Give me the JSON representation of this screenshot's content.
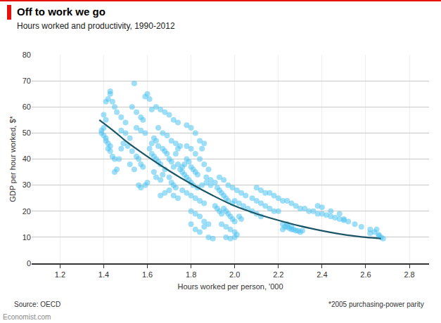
{
  "chart_data": {
    "type": "scatter",
    "title": "Off to work we go",
    "subtitle": "Hours worked and productivity, 1990-2012",
    "x_label": "Hours worked per person, '000",
    "y_label": "GDP per hour worked, $*",
    "annotations": [
      "Source: OECD",
      "*2005 purchasing-power parity",
      "Economist.com"
    ],
    "xlim": [
      1.07,
      2.89
    ],
    "xticks": [
      1.2,
      1.4,
      1.6,
      1.8,
      {
        "value": 2,
        "label": "2.0"
      },
      2.2,
      2.4,
      2.6,
      2.8
    ],
    "ylim": [
      0,
      80
    ],
    "yticks": [
      0,
      10,
      20,
      30,
      40,
      50,
      60,
      70,
      80
    ],
    "grid": true,
    "series": [
      {
        "type": "scatter",
        "color": "#4fc3f0",
        "marker": "circle",
        "x": [
          1.39,
          1.39,
          1.4,
          1.4,
          1.41,
          1.41,
          1.42,
          1.42,
          1.43,
          1.43,
          1.44,
          1.45,
          1.41,
          1.42,
          1.43,
          1.43,
          1.44,
          1.45,
          1.46,
          1.45,
          1.46,
          1.47,
          1.48,
          1.4,
          1.41,
          1.48,
          1.5,
          1.52,
          1.49,
          1.51,
          1.53,
          1.55,
          1.56,
          1.57,
          1.58,
          1.53,
          1.54,
          1.55,
          1.57,
          1.58,
          1.59,
          1.6,
          1.61,
          1.55,
          1.57,
          1.59,
          1.52,
          1.54,
          1.56,
          1.57,
          1.59,
          1.6,
          1.5,
          1.48,
          1.61,
          1.62,
          1.63,
          1.64,
          1.65,
          1.66,
          1.62,
          1.63,
          1.64,
          1.65,
          1.67,
          1.68,
          1.69,
          1.7,
          1.71,
          1.72,
          1.63,
          1.64,
          1.66,
          1.67,
          1.68,
          1.7,
          1.71,
          1.72,
          1.73,
          1.62,
          1.64,
          1.66,
          1.68,
          1.7,
          1.72,
          1.74,
          1.65,
          1.67,
          1.69,
          1.71,
          1.73,
          1.75,
          1.74,
          1.73,
          1.66,
          1.68,
          1.7,
          1.72,
          1.74,
          1.75,
          1.76,
          1.74,
          1.76,
          1.77,
          1.78,
          1.79,
          1.8,
          1.81,
          1.77,
          1.78,
          1.79,
          1.8,
          1.81,
          1.82,
          1.83,
          1.78,
          1.8,
          1.82,
          1.84,
          1.86,
          1.85,
          1.78,
          1.8,
          1.82,
          1.84,
          1.86,
          1.88,
          1.76,
          1.78,
          1.8,
          1.82,
          1.84,
          1.86,
          1.83,
          1.85,
          1.87,
          1.89,
          1.8,
          1.82,
          1.84,
          1.86,
          1.88,
          1.8,
          1.82,
          1.84,
          1.86,
          1.88,
          1.9,
          1.87,
          1.89,
          1.91,
          1.92,
          1.93,
          1.94,
          1.95,
          1.96,
          1.91,
          1.92,
          1.93,
          1.94,
          1.95,
          1.96,
          1.97,
          1.98,
          1.99,
          2.0,
          1.94,
          1.96,
          1.98,
          2.0,
          2.01,
          1.96,
          1.98,
          2.0,
          1.93,
          1.95,
          1.97,
          1.99,
          2.01,
          2.03,
          2.05,
          2.0,
          2.02,
          2.04,
          2.06,
          2.02,
          2.03,
          1.97,
          1.99,
          2.08,
          2.1,
          2.12,
          2.14,
          2.16,
          2.18,
          2.2,
          2.1,
          2.12,
          2.14,
          2.16,
          2.18,
          2.2,
          2.22,
          2.24,
          2.26,
          2.28,
          2.08,
          2.1,
          2.12,
          2.22,
          2.23,
          2.24,
          2.25,
          2.26,
          2.27,
          2.28,
          2.29,
          2.3,
          2.31,
          2.22,
          2.24,
          2.26,
          2.3,
          2.32,
          2.34,
          2.36,
          2.38,
          2.4,
          2.42,
          2.44,
          2.46,
          2.48,
          2.5,
          2.52,
          2.38,
          2.4,
          2.44,
          2.48,
          2.5,
          2.55,
          2.58,
          2.62,
          2.64,
          2.65,
          2.66,
          2.67,
          2.68,
          2.66,
          2.62
        ],
        "values": [
          51,
          50,
          52,
          49,
          48,
          47,
          46,
          44,
          45,
          43,
          41,
          40,
          62,
          63,
          65,
          66,
          62,
          60,
          58,
          35,
          36,
          40,
          44,
          57,
          55,
          51,
          50,
          48,
          46,
          45,
          43,
          41,
          40,
          38,
          37,
          60,
          69,
          58,
          56,
          55,
          64,
          65,
          63,
          52,
          51,
          50,
          38,
          36,
          30,
          29,
          30,
          31,
          54,
          56,
          44,
          42,
          41,
          40,
          39,
          38,
          46,
          48,
          47,
          45,
          44,
          43,
          42,
          40,
          39,
          37,
          35,
          33,
          32,
          34,
          36,
          33,
          31,
          30,
          29,
          59,
          60,
          59,
          58,
          57,
          55,
          54,
          52,
          50,
          49,
          47,
          46,
          45,
          44,
          42,
          26,
          27,
          28,
          26,
          25,
          36,
          37,
          38,
          35,
          34,
          33,
          32,
          31,
          30,
          38,
          40,
          39,
          37,
          36,
          35,
          34,
          53,
          52,
          50,
          47,
          46,
          44,
          45,
          44,
          42,
          40,
          38,
          36,
          28,
          27,
          26,
          25,
          24,
          23,
          29,
          30,
          31,
          30,
          20,
          19,
          18,
          16,
          15,
          15,
          13,
          12,
          14,
          10,
          9.5,
          33,
          32,
          31,
          29,
          28,
          27,
          26,
          25,
          22,
          21,
          20,
          19,
          21,
          20,
          19,
          18,
          17,
          16,
          15,
          14,
          13,
          12,
          11,
          10,
          9.5,
          10,
          33,
          32,
          30,
          29,
          28,
          27,
          26,
          24,
          23,
          22,
          21,
          18,
          17,
          24,
          23,
          25,
          24,
          23,
          22,
          21,
          20,
          20,
          29,
          28,
          27,
          27,
          26,
          25,
          24,
          24,
          23,
          22,
          20,
          19,
          18,
          15,
          14,
          14,
          13.5,
          13,
          13,
          12.5,
          12.5,
          12,
          12.5,
          13,
          15,
          14,
          21,
          21,
          20,
          20,
          19,
          19,
          18.5,
          18,
          17.5,
          17,
          16.5,
          16,
          22,
          21.5,
          20,
          19,
          17,
          15,
          14,
          13,
          12,
          13,
          11,
          10,
          9.5,
          10.5,
          11.5
        ]
      },
      {
        "type": "line",
        "color": "#1a5668",
        "line_style": "solid",
        "x": [
          1.38,
          1.45,
          1.5,
          1.6,
          1.7,
          1.8,
          1.9,
          2.0,
          2.1,
          2.2,
          2.3,
          2.4,
          2.5,
          2.6,
          2.67
        ],
        "values": [
          55,
          50.5,
          47,
          41,
          35.5,
          30.5,
          26,
          22,
          19,
          16.5,
          14.3,
          12.5,
          11,
          10,
          9.5
        ]
      }
    ]
  }
}
